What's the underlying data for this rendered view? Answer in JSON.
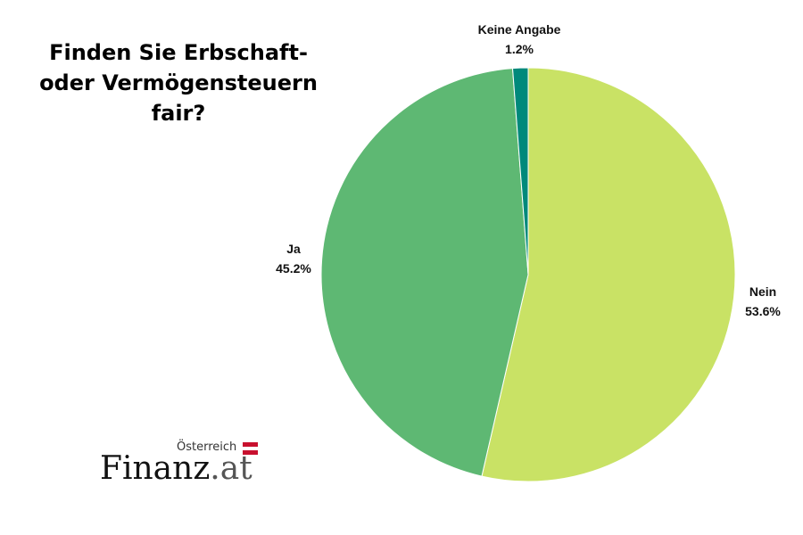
{
  "title": {
    "lines": [
      "Finden Sie Erbschaft-",
      "oder Vermögensteuern",
      "fair?"
    ]
  },
  "chart_data": {
    "type": "pie",
    "title": "Finden Sie Erbschaft- oder Vermögensteuern fair?",
    "slices": [
      {
        "label": "Nein",
        "value": 53.6,
        "value_label": "53.6%",
        "color": "#c9e265"
      },
      {
        "label": "Ja",
        "value": 45.2,
        "value_label": "45.2%",
        "color": "#5eb873"
      },
      {
        "label": "Keine Angabe",
        "value": 1.2,
        "value_label": "1.2%",
        "color": "#00897b"
      }
    ],
    "start_angle_deg": 0,
    "direction": "clockwise",
    "legend": "none"
  },
  "logo": {
    "country": "Österreich",
    "brand": "Finanz",
    "tld": ".at",
    "flag_colors": [
      "#c8102e",
      "#ffffff",
      "#c8102e"
    ]
  }
}
